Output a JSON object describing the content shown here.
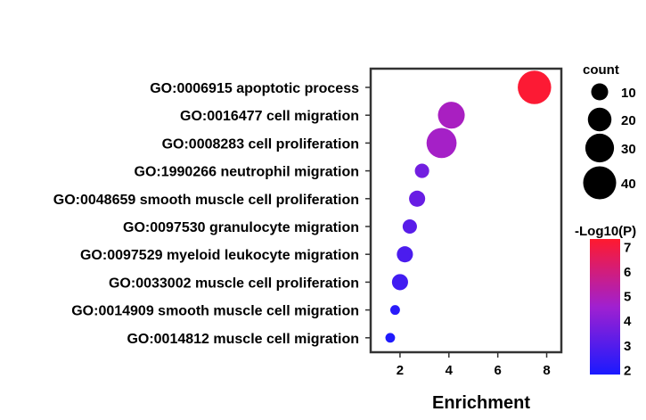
{
  "chart_data": {
    "type": "scatter",
    "xlabel": "Enrichment",
    "ylabel": "",
    "xlim": [
      0.8,
      8.6
    ],
    "x_ticks": [
      "2",
      "4",
      "6",
      "8"
    ],
    "categories": [
      "GO:0006915 apoptotic process",
      "GO:0016477 cell migration",
      "GO:0008283 cell proliferation",
      "GO:1990266 neutrophil migration",
      "GO:0048659 smooth muscle cell proliferation",
      "GO:0097530 granulocyte migration",
      "GO:0097529 myeloid leukocyte migration",
      "GO:0033002 muscle cell proliferation",
      "GO:0014909 smooth muscle cell migration",
      "GO:0014812 muscle cell migration"
    ],
    "points": [
      {
        "term": "GO:0006915 apoptotic process",
        "enrichment": 7.5,
        "count": 41,
        "neg_log10_p": 7.2
      },
      {
        "term": "GO:0016477 cell migration",
        "enrichment": 4.1,
        "count": 26,
        "neg_log10_p": 4.8
      },
      {
        "term": "GO:0008283 cell proliferation",
        "enrichment": 3.7,
        "count": 33,
        "neg_log10_p": 4.7
      },
      {
        "term": "GO:1990266 neutrophil migration",
        "enrichment": 2.9,
        "count": 7,
        "neg_log10_p": 3.6
      },
      {
        "term": "GO:0048659 smooth muscle cell proliferation",
        "enrichment": 2.7,
        "count": 9,
        "neg_log10_p": 3.4
      },
      {
        "term": "GO:0097530 granulocyte migration",
        "enrichment": 2.4,
        "count": 7,
        "neg_log10_p": 3.1
      },
      {
        "term": "GO:0097529 myeloid leukocyte migration",
        "enrichment": 2.2,
        "count": 9,
        "neg_log10_p": 2.8
      },
      {
        "term": "GO:0033002 muscle cell proliferation",
        "enrichment": 2.0,
        "count": 9,
        "neg_log10_p": 2.6
      },
      {
        "term": "GO:0014909 smooth muscle cell migration",
        "enrichment": 1.8,
        "count": 3,
        "neg_log10_p": 2.1
      },
      {
        "term": "GO:0014812 muscle cell migration",
        "enrichment": 1.6,
        "count": 3,
        "neg_log10_p": 1.9
      }
    ],
    "size_legend": {
      "title": "count",
      "values": [
        10,
        20,
        30,
        40
      ]
    },
    "color_legend": {
      "title": "-Log10(P)",
      "range": [
        1.8,
        7.3
      ],
      "ticks": [
        2,
        3,
        4,
        5,
        6,
        7
      ],
      "low_color": "#1a1aff",
      "mid_color": "#a020d0",
      "high_color": "#ff1a2e"
    },
    "grid": false
  }
}
